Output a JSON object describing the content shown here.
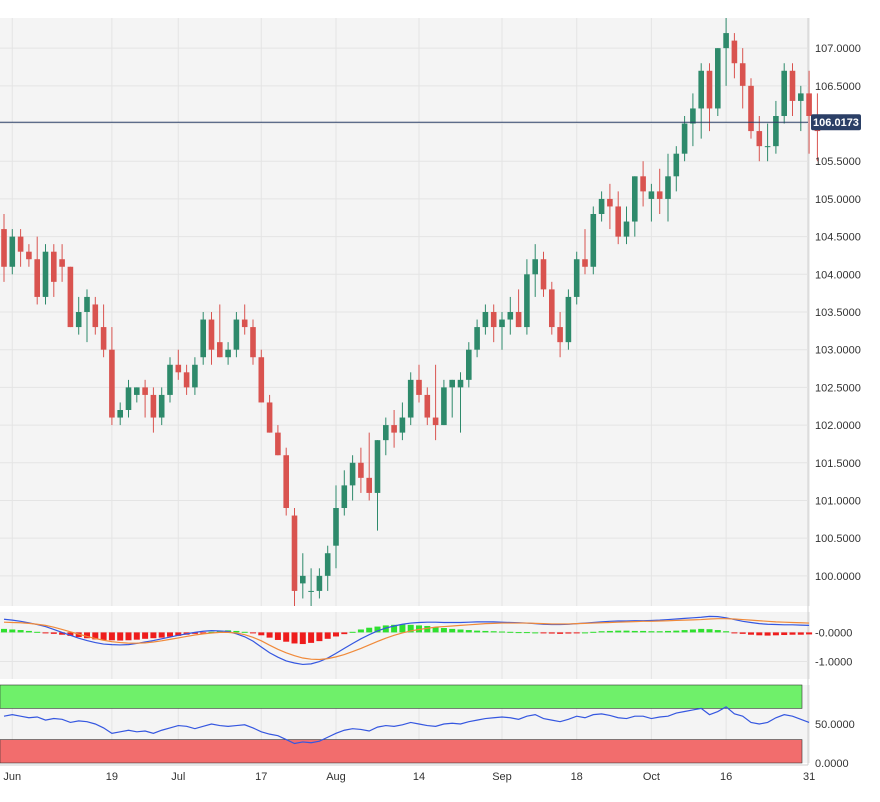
{
  "chart_data": [
    {
      "type": "candlestick",
      "title": "",
      "instrument_price_label": "106.0173",
      "ylim": [
        99.6,
        107.4
      ],
      "yticks": [
        "100.0000",
        "100.5000",
        "101.0000",
        "101.5000",
        "102.0000",
        "102.5000",
        "103.0000",
        "103.5000",
        "104.0000",
        "104.5000",
        "105.0000",
        "105.5000",
        "106.5000",
        "107.0000"
      ],
      "ytick_values": [
        100.0,
        100.5,
        101.0,
        101.5,
        102.0,
        102.5,
        103.0,
        103.5,
        104.0,
        104.5,
        105.0,
        105.5,
        106.5,
        107.0
      ],
      "current_price": 106.0173,
      "xlabels": [
        "Jun",
        "19",
        "Jul",
        "17",
        "Aug",
        "14",
        "Sep",
        "18",
        "Oct",
        "16",
        "31"
      ],
      "xlabel_bar_index": [
        1,
        13,
        21,
        31,
        40,
        50,
        60,
        69,
        78,
        87,
        97
      ],
      "colors": {
        "up": "#2e8a6b",
        "down": "#d9534f",
        "grid": "#e4e4e4",
        "bg": "#f4f4f4",
        "price_line": "#2b3f66"
      },
      "ohlc": [
        [
          104.6,
          104.8,
          103.9,
          104.1
        ],
        [
          104.1,
          104.6,
          104.0,
          104.5
        ],
        [
          104.5,
          104.6,
          104.1,
          104.3
        ],
        [
          104.3,
          104.4,
          104.1,
          104.2
        ],
        [
          104.2,
          104.5,
          103.6,
          103.7
        ],
        [
          103.7,
          104.4,
          103.6,
          104.3
        ],
        [
          104.3,
          104.4,
          103.7,
          103.9
        ],
        [
          104.2,
          104.4,
          103.9,
          104.1
        ],
        [
          104.1,
          104.1,
          103.3,
          103.3
        ],
        [
          103.3,
          103.7,
          103.2,
          103.5
        ],
        [
          103.5,
          103.8,
          103.1,
          103.7
        ],
        [
          103.6,
          103.7,
          103.2,
          103.3
        ],
        [
          103.3,
          103.6,
          102.9,
          103.0
        ],
        [
          103.0,
          103.3,
          102.0,
          102.1
        ],
        [
          102.1,
          102.3,
          102.0,
          102.2
        ],
        [
          102.2,
          102.6,
          102.1,
          102.5
        ],
        [
          102.4,
          102.5,
          102.3,
          102.5
        ],
        [
          102.5,
          102.6,
          102.1,
          102.4
        ],
        [
          102.4,
          102.5,
          101.9,
          102.1
        ],
        [
          102.1,
          102.5,
          102.0,
          102.4
        ],
        [
          102.4,
          102.9,
          102.3,
          102.8
        ],
        [
          102.8,
          103.0,
          102.6,
          102.7
        ],
        [
          102.7,
          102.8,
          102.4,
          102.5
        ],
        [
          102.5,
          102.9,
          102.4,
          102.8
        ],
        [
          102.9,
          103.5,
          102.8,
          103.4
        ],
        [
          103.4,
          103.5,
          102.8,
          103.0
        ],
        [
          103.1,
          103.6,
          102.9,
          102.9
        ],
        [
          102.9,
          103.1,
          102.8,
          103.0
        ],
        [
          103.0,
          103.5,
          102.9,
          103.4
        ],
        [
          103.4,
          103.6,
          103.2,
          103.3
        ],
        [
          103.3,
          103.4,
          102.8,
          102.9
        ],
        [
          102.9,
          103.0,
          102.3,
          102.3
        ],
        [
          102.3,
          102.4,
          101.9,
          101.9
        ],
        [
          101.9,
          102.0,
          101.6,
          101.6
        ],
        [
          101.6,
          101.7,
          100.8,
          100.9
        ],
        [
          100.8,
          100.9,
          99.6,
          99.8
        ],
        [
          99.9,
          100.3,
          99.7,
          100.0
        ],
        [
          99.8,
          100.1,
          99.6,
          99.8
        ],
        [
          99.8,
          100.1,
          99.7,
          100.0
        ],
        [
          100.0,
          100.4,
          99.8,
          100.3
        ],
        [
          100.4,
          101.2,
          100.1,
          100.9
        ],
        [
          100.9,
          101.4,
          100.8,
          101.2
        ],
        [
          101.2,
          101.6,
          101.0,
          101.5
        ],
        [
          101.5,
          101.7,
          101.1,
          101.3
        ],
        [
          101.3,
          101.9,
          101.0,
          101.1
        ],
        [
          101.1,
          101.8,
          100.6,
          101.8
        ],
        [
          101.8,
          102.1,
          101.6,
          102.0
        ],
        [
          102.0,
          102.2,
          101.7,
          101.9
        ],
        [
          101.9,
          102.3,
          101.8,
          102.1
        ],
        [
          102.1,
          102.7,
          102.0,
          102.6
        ],
        [
          102.6,
          102.8,
          102.3,
          102.4
        ],
        [
          102.4,
          102.5,
          102.0,
          102.1
        ],
        [
          102.1,
          102.8,
          101.8,
          102.0
        ],
        [
          102.0,
          102.6,
          102.0,
          102.5
        ],
        [
          102.5,
          102.6,
          102.1,
          102.6
        ],
        [
          102.5,
          102.7,
          101.9,
          102.6
        ],
        [
          102.6,
          103.1,
          102.5,
          103.0
        ],
        [
          103.0,
          103.4,
          102.9,
          103.3
        ],
        [
          103.3,
          103.6,
          103.2,
          103.5
        ],
        [
          103.5,
          103.6,
          103.1,
          103.3
        ],
        [
          103.3,
          103.5,
          103.0,
          103.4
        ],
        [
          103.4,
          103.7,
          103.2,
          103.5
        ],
        [
          103.5,
          103.8,
          103.3,
          103.3
        ],
        [
          103.3,
          104.2,
          103.2,
          104.0
        ],
        [
          104.0,
          104.4,
          103.7,
          104.2
        ],
        [
          104.2,
          104.3,
          103.7,
          103.8
        ],
        [
          103.8,
          103.9,
          103.2,
          103.3
        ],
        [
          103.3,
          103.5,
          102.9,
          103.1
        ],
        [
          103.1,
          103.8,
          103.0,
          103.7
        ],
        [
          103.7,
          104.3,
          103.6,
          104.2
        ],
        [
          104.2,
          104.6,
          104.0,
          104.1
        ],
        [
          104.1,
          104.9,
          104.0,
          104.8
        ],
        [
          104.8,
          105.1,
          104.7,
          105.0
        ],
        [
          105.0,
          105.2,
          104.6,
          104.9
        ],
        [
          104.9,
          105.1,
          104.4,
          104.5
        ],
        [
          104.5,
          104.9,
          104.4,
          104.7
        ],
        [
          104.7,
          105.3,
          104.5,
          105.3
        ],
        [
          105.3,
          105.5,
          104.9,
          105.1
        ],
        [
          105.0,
          105.2,
          104.7,
          105.1
        ],
        [
          105.1,
          105.4,
          104.8,
          105.0
        ],
        [
          105.0,
          105.6,
          104.7,
          105.3
        ],
        [
          105.3,
          105.7,
          105.1,
          105.6
        ],
        [
          105.6,
          106.1,
          105.5,
          106.0
        ],
        [
          106.0,
          106.4,
          105.7,
          106.2
        ],
        [
          106.2,
          106.8,
          105.8,
          106.7
        ],
        [
          106.7,
          106.8,
          105.9,
          106.2
        ],
        [
          106.2,
          107.0,
          106.1,
          107.0
        ],
        [
          107.0,
          107.4,
          106.5,
          107.2
        ],
        [
          107.1,
          107.2,
          106.6,
          106.8
        ],
        [
          106.8,
          107.0,
          106.2,
          106.5
        ],
        [
          106.5,
          106.6,
          105.8,
          105.9
        ],
        [
          105.9,
          106.1,
          105.5,
          105.7
        ],
        [
          105.7,
          106.0,
          105.5,
          105.7
        ],
        [
          105.7,
          106.3,
          105.6,
          106.1
        ],
        [
          106.1,
          106.8,
          106.0,
          106.7
        ],
        [
          106.7,
          106.8,
          106.1,
          106.3
        ],
        [
          106.3,
          106.5,
          105.9,
          106.4
        ],
        [
          106.4,
          106.7,
          105.6,
          106.1
        ],
        [
          106.1,
          106.4,
          105.5,
          105.9
        ]
      ]
    },
    {
      "type": "line",
      "panel": "oscillator",
      "yticks": [
        "-0.0000",
        "-1.0000"
      ],
      "ytick_values": [
        0,
        -1
      ],
      "ylim": [
        -1.6,
        0.7
      ],
      "histogram": [
        0.12,
        0.1,
        0.08,
        0.05,
        0.02,
        -0.02,
        -0.05,
        -0.08,
        -0.12,
        -0.16,
        -0.2,
        -0.24,
        -0.26,
        -0.27,
        -0.28,
        -0.27,
        -0.25,
        -0.22,
        -0.2,
        -0.18,
        -0.15,
        -0.12,
        -0.08,
        -0.05,
        -0.02,
        0.02,
        0.05,
        0.07,
        0.05,
        0.02,
        -0.03,
        -0.1,
        -0.18,
        -0.26,
        -0.32,
        -0.38,
        -0.4,
        -0.36,
        -0.3,
        -0.22,
        -0.14,
        -0.06,
        0.02,
        0.1,
        0.16,
        0.2,
        0.24,
        0.26,
        0.27,
        0.26,
        0.24,
        0.22,
        0.18,
        0.15,
        0.12,
        0.1,
        0.08,
        0.06,
        0.05,
        0.04,
        0.03,
        0.02,
        0.01,
        0.01,
        0.0,
        -0.02,
        -0.04,
        -0.05,
        -0.04,
        -0.02,
        0.0,
        0.02,
        0.04,
        0.05,
        0.06,
        0.06,
        0.05,
        0.05,
        0.04,
        0.04,
        0.05,
        0.06,
        0.08,
        0.1,
        0.12,
        0.11,
        0.08,
        0.04,
        -0.01,
        -0.05,
        -0.08,
        -0.1,
        -0.11,
        -0.1,
        -0.09,
        -0.08,
        -0.08,
        -0.07
      ],
      "series": [
        {
          "values": [
            0.45,
            0.42,
            0.38,
            0.33,
            0.27,
            0.2,
            0.1,
            0.0,
            -0.1,
            -0.2,
            -0.28,
            -0.35,
            -0.4,
            -0.42,
            -0.43,
            -0.42,
            -0.38,
            -0.33,
            -0.28,
            -0.22,
            -0.16,
            -0.1,
            -0.05,
            0.0,
            0.04,
            0.06,
            0.05,
            0.03,
            -0.05,
            -0.15,
            -0.3,
            -0.5,
            -0.7,
            -0.85,
            -0.98,
            -1.05,
            -1.1,
            -1.08,
            -1.0,
            -0.88,
            -0.72,
            -0.55,
            -0.38,
            -0.22,
            -0.08,
            0.05,
            0.15,
            0.22,
            0.28,
            0.32,
            0.34,
            0.35,
            0.35,
            0.34,
            0.34,
            0.34,
            0.35,
            0.36,
            0.36,
            0.36,
            0.35,
            0.34,
            0.33,
            0.32,
            0.3,
            0.28,
            0.27,
            0.27,
            0.28,
            0.3,
            0.32,
            0.34,
            0.36,
            0.38,
            0.39,
            0.39,
            0.4,
            0.4,
            0.41,
            0.42,
            0.44,
            0.46,
            0.48,
            0.5,
            0.52,
            0.55,
            0.54,
            0.5,
            0.44,
            0.38,
            0.34,
            0.3,
            0.28,
            0.27,
            0.26,
            0.26,
            0.25,
            0.24
          ]
        },
        {
          "values": [
            0.35,
            0.34,
            0.33,
            0.31,
            0.28,
            0.24,
            0.18,
            0.1,
            0.02,
            -0.06,
            -0.14,
            -0.21,
            -0.27,
            -0.32,
            -0.35,
            -0.37,
            -0.37,
            -0.36,
            -0.33,
            -0.29,
            -0.24,
            -0.19,
            -0.14,
            -0.09,
            -0.05,
            -0.02,
            0.0,
            0.0,
            -0.02,
            -0.08,
            -0.17,
            -0.29,
            -0.44,
            -0.58,
            -0.7,
            -0.8,
            -0.88,
            -0.92,
            -0.93,
            -0.9,
            -0.84,
            -0.76,
            -0.66,
            -0.55,
            -0.43,
            -0.31,
            -0.2,
            -0.1,
            -0.02,
            0.05,
            0.1,
            0.14,
            0.18,
            0.2,
            0.22,
            0.24,
            0.26,
            0.28,
            0.3,
            0.31,
            0.32,
            0.32,
            0.32,
            0.32,
            0.31,
            0.3,
            0.29,
            0.29,
            0.29,
            0.3,
            0.31,
            0.32,
            0.33,
            0.34,
            0.35,
            0.36,
            0.37,
            0.38,
            0.38,
            0.39,
            0.4,
            0.41,
            0.42,
            0.43,
            0.44,
            0.46,
            0.47,
            0.47,
            0.46,
            0.44,
            0.42,
            0.4,
            0.38,
            0.36,
            0.35,
            0.34,
            0.33,
            0.32
          ]
        }
      ]
    },
    {
      "type": "line",
      "panel": "rsi",
      "yticks": [
        "50.0000",
        "0.0000"
      ],
      "ytick_values": [
        50,
        0
      ],
      "ylim": [
        0,
        100
      ],
      "overbought_band": [
        70,
        100
      ],
      "oversold_band": [
        0,
        30
      ],
      "series": [
        {
          "values": [
            60,
            62,
            60,
            58,
            59,
            55,
            57,
            56,
            52,
            54,
            53,
            50,
            45,
            38,
            40,
            42,
            40,
            41,
            38,
            42,
            45,
            48,
            47,
            44,
            47,
            50,
            48,
            47,
            48,
            49,
            45,
            40,
            37,
            35,
            30,
            25,
            27,
            26,
            28,
            33,
            38,
            42,
            44,
            43,
            41,
            46,
            48,
            47,
            49,
            52,
            50,
            48,
            47,
            50,
            51,
            50,
            53,
            55,
            57,
            58,
            59,
            58,
            56,
            60,
            62,
            57,
            55,
            53,
            56,
            60,
            58,
            62,
            63,
            61,
            58,
            57,
            60,
            60,
            57,
            59,
            60,
            64,
            66,
            68,
            70,
            62,
            66,
            72,
            63,
            60,
            52,
            50,
            52,
            58,
            62,
            60,
            56,
            52
          ]
        }
      ]
    }
  ]
}
